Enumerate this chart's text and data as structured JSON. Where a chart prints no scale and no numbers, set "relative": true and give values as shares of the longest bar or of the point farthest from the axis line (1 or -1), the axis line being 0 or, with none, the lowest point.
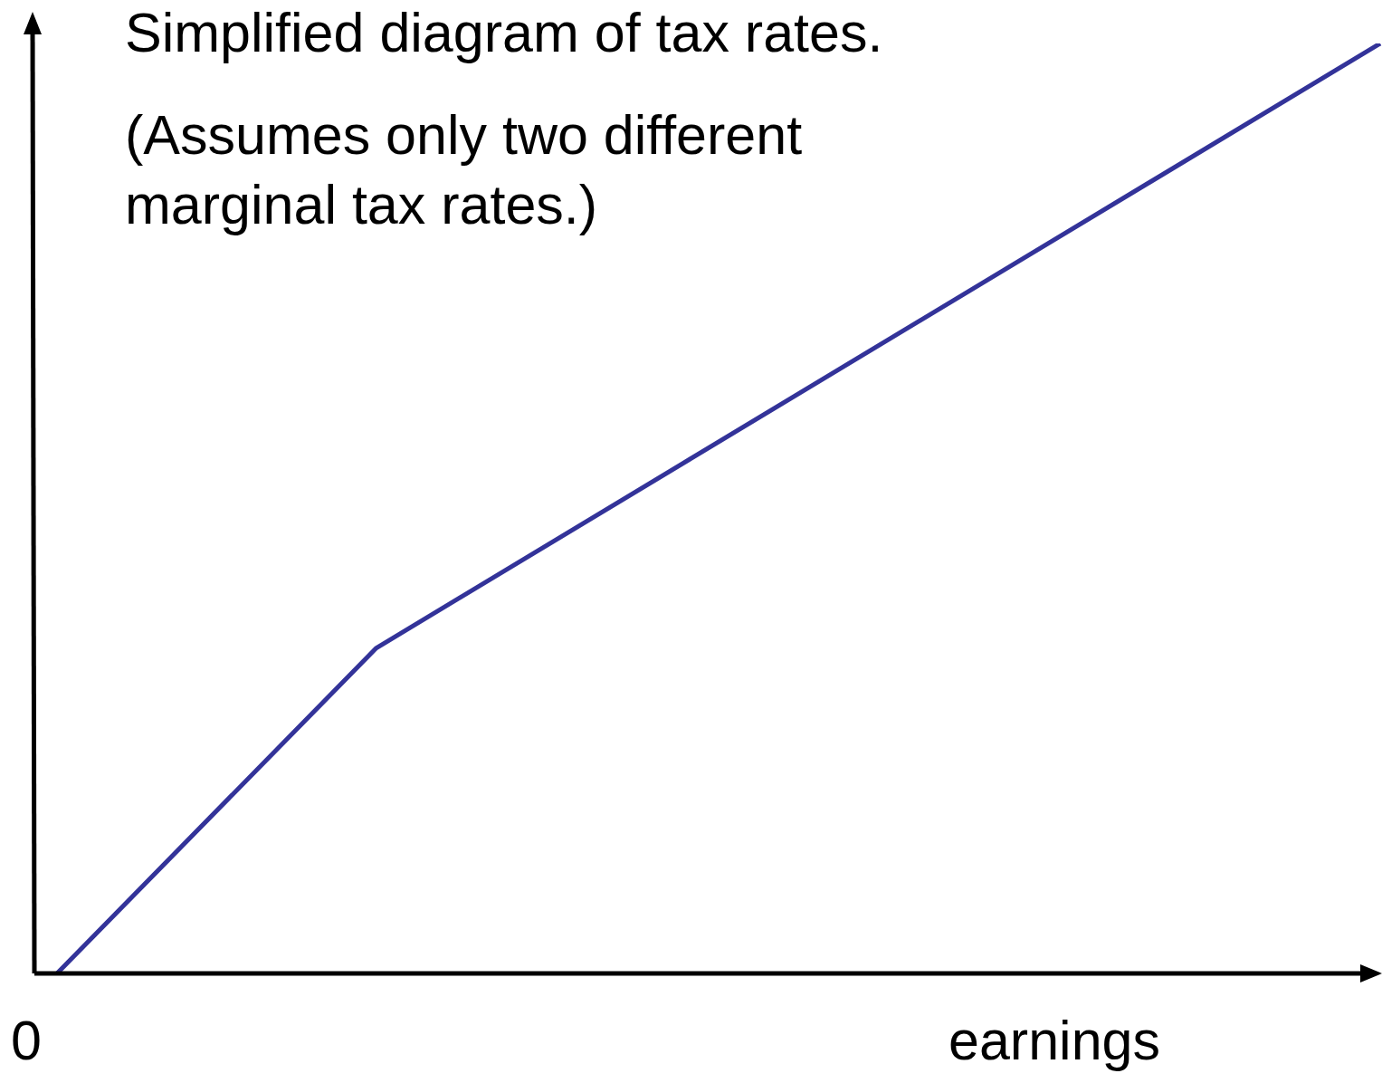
{
  "chart_data": {
    "type": "line",
    "title": "Simplified diagram of tax rates.",
    "subtitle": "(Assumes only two different marginal tax rates.)",
    "xlabel": "earnings",
    "annotations": [
      "0"
    ],
    "relative": true,
    "categories": [
      null,
      null,
      null,
      null,
      null,
      null,
      null,
      null,
      null,
      null,
      null,
      null,
      null,
      null,
      null,
      null,
      null,
      null,
      null,
      null,
      null,
      null,
      null,
      null,
      null,
      null,
      null,
      null,
      null,
      null
    ],
    "series": [
      {
        "color": "#333399",
        "values": [
          0,
          null,
          null,
          null,
          null,
          null,
          null,
          0.35,
          null,
          null,
          null,
          null,
          null,
          null,
          null,
          null,
          null,
          null,
          null,
          null,
          null,
          null,
          null,
          null,
          null,
          null,
          null,
          null,
          null,
          1
        ]
      }
    ],
    "legend": false,
    "marker": "none",
    "line_style": "solid"
  }
}
